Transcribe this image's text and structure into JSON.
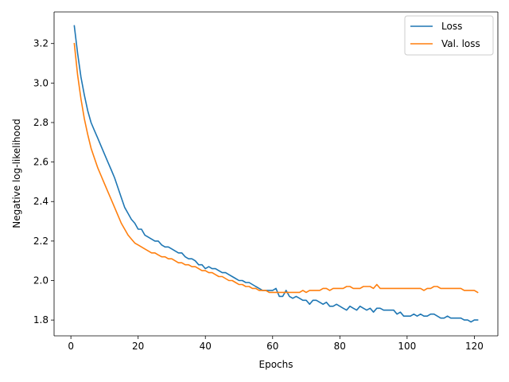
{
  "chart_data": {
    "type": "line",
    "title": "",
    "xlabel": "Epochs",
    "ylabel": "Negative log-likelihood",
    "xlim": [
      -5,
      127
    ],
    "ylim": [
      1.72,
      3.36
    ],
    "xticks": [
      0,
      20,
      40,
      60,
      80,
      100,
      120
    ],
    "xtick_labels": [
      "0",
      "20",
      "40",
      "60",
      "80",
      "100",
      "120"
    ],
    "yticks": [
      1.8,
      2.0,
      2.2,
      2.4,
      2.6,
      2.8,
      3.0,
      3.2
    ],
    "ytick_labels": [
      "1.8",
      "2.0",
      "2.2",
      "2.4",
      "2.6",
      "2.8",
      "3.0",
      "3.2"
    ],
    "grid": false,
    "legend_position": "top-right",
    "series": [
      {
        "name": "Loss",
        "color": "#1f77b4",
        "x": [
          1,
          2,
          3,
          4,
          5,
          6,
          7,
          8,
          9,
          10,
          11,
          12,
          13,
          14,
          15,
          16,
          17,
          18,
          19,
          20,
          21,
          22,
          23,
          24,
          25,
          26,
          27,
          28,
          29,
          30,
          31,
          32,
          33,
          34,
          35,
          36,
          37,
          38,
          39,
          40,
          41,
          42,
          43,
          44,
          45,
          46,
          47,
          48,
          49,
          50,
          51,
          52,
          53,
          54,
          55,
          56,
          57,
          58,
          59,
          60,
          61,
          62,
          63,
          64,
          65,
          66,
          67,
          68,
          69,
          70,
          71,
          72,
          73,
          74,
          75,
          76,
          77,
          78,
          79,
          80,
          81,
          82,
          83,
          84,
          85,
          86,
          87,
          88,
          89,
          90,
          91,
          92,
          93,
          94,
          95,
          96,
          97,
          98,
          99,
          100,
          101,
          102,
          103,
          104,
          105,
          106,
          107,
          108,
          109,
          110,
          111,
          112,
          113,
          114,
          115,
          116,
          117,
          118,
          119,
          120,
          121
        ],
        "y": [
          3.29,
          3.15,
          3.03,
          2.94,
          2.86,
          2.8,
          2.76,
          2.72,
          2.68,
          2.64,
          2.6,
          2.56,
          2.52,
          2.47,
          2.42,
          2.37,
          2.34,
          2.31,
          2.29,
          2.26,
          2.26,
          2.23,
          2.22,
          2.21,
          2.2,
          2.2,
          2.18,
          2.17,
          2.17,
          2.16,
          2.15,
          2.14,
          2.14,
          2.12,
          2.11,
          2.11,
          2.1,
          2.08,
          2.08,
          2.06,
          2.07,
          2.06,
          2.06,
          2.05,
          2.04,
          2.04,
          2.03,
          2.02,
          2.01,
          2.0,
          2.0,
          1.99,
          1.99,
          1.98,
          1.97,
          1.96,
          1.95,
          1.95,
          1.95,
          1.95,
          1.96,
          1.92,
          1.92,
          1.95,
          1.92,
          1.91,
          1.92,
          1.91,
          1.9,
          1.9,
          1.88,
          1.9,
          1.9,
          1.89,
          1.88,
          1.89,
          1.87,
          1.87,
          1.88,
          1.87,
          1.86,
          1.85,
          1.87,
          1.86,
          1.85,
          1.87,
          1.86,
          1.85,
          1.86,
          1.84,
          1.86,
          1.86,
          1.85,
          1.85,
          1.85,
          1.85,
          1.83,
          1.84,
          1.82,
          1.82,
          1.82,
          1.83,
          1.82,
          1.83,
          1.82,
          1.82,
          1.83,
          1.83,
          1.82,
          1.81,
          1.81,
          1.82,
          1.81,
          1.81,
          1.81,
          1.81,
          1.8,
          1.8,
          1.79,
          1.8,
          1.8
        ]
      },
      {
        "name": "Val. loss",
        "color": "#ff7f0e",
        "x": [
          1,
          2,
          3,
          4,
          5,
          6,
          7,
          8,
          9,
          10,
          11,
          12,
          13,
          14,
          15,
          16,
          17,
          18,
          19,
          20,
          21,
          22,
          23,
          24,
          25,
          26,
          27,
          28,
          29,
          30,
          31,
          32,
          33,
          34,
          35,
          36,
          37,
          38,
          39,
          40,
          41,
          42,
          43,
          44,
          45,
          46,
          47,
          48,
          49,
          50,
          51,
          52,
          53,
          54,
          55,
          56,
          57,
          58,
          59,
          60,
          61,
          62,
          63,
          64,
          65,
          66,
          67,
          68,
          69,
          70,
          71,
          72,
          73,
          74,
          75,
          76,
          77,
          78,
          79,
          80,
          81,
          82,
          83,
          84,
          85,
          86,
          87,
          88,
          89,
          90,
          91,
          92,
          93,
          94,
          95,
          96,
          97,
          98,
          99,
          100,
          101,
          102,
          103,
          104,
          105,
          106,
          107,
          108,
          109,
          110,
          111,
          112,
          113,
          114,
          115,
          116,
          117,
          118,
          119,
          120,
          121
        ],
        "y": [
          3.2,
          3.04,
          2.92,
          2.82,
          2.74,
          2.67,
          2.62,
          2.57,
          2.53,
          2.49,
          2.45,
          2.41,
          2.37,
          2.33,
          2.29,
          2.26,
          2.23,
          2.21,
          2.19,
          2.18,
          2.17,
          2.16,
          2.15,
          2.14,
          2.14,
          2.13,
          2.12,
          2.12,
          2.11,
          2.11,
          2.1,
          2.09,
          2.09,
          2.08,
          2.08,
          2.07,
          2.07,
          2.06,
          2.05,
          2.05,
          2.04,
          2.04,
          2.03,
          2.02,
          2.02,
          2.01,
          2.0,
          2.0,
          1.99,
          1.98,
          1.98,
          1.97,
          1.97,
          1.96,
          1.96,
          1.95,
          1.95,
          1.95,
          1.94,
          1.94,
          1.94,
          1.94,
          1.94,
          1.94,
          1.94,
          1.94,
          1.94,
          1.94,
          1.95,
          1.94,
          1.95,
          1.95,
          1.95,
          1.95,
          1.96,
          1.96,
          1.95,
          1.96,
          1.96,
          1.96,
          1.96,
          1.97,
          1.97,
          1.96,
          1.96,
          1.96,
          1.97,
          1.97,
          1.97,
          1.96,
          1.98,
          1.96,
          1.96,
          1.96,
          1.96,
          1.96,
          1.96,
          1.96,
          1.96,
          1.96,
          1.96,
          1.96,
          1.96,
          1.96,
          1.95,
          1.96,
          1.96,
          1.97,
          1.97,
          1.96,
          1.96,
          1.96,
          1.96,
          1.96,
          1.96,
          1.96,
          1.95,
          1.95,
          1.95,
          1.95,
          1.94
        ]
      }
    ]
  }
}
